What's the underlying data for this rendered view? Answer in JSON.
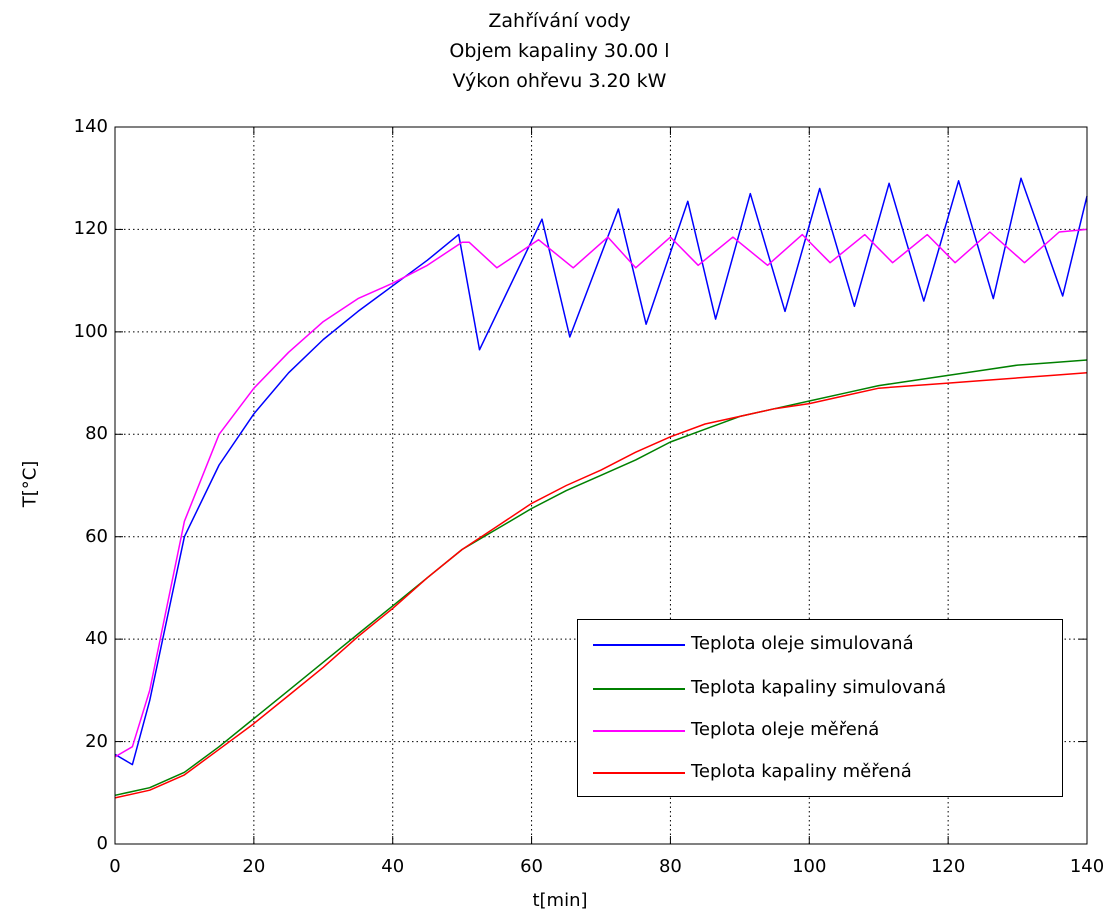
{
  "chart_data": {
    "type": "line",
    "title": [
      "Zahřívání vody",
      "Objem kapaliny 30.00 l",
      "Výkon ohřevu 3.20 kW"
    ],
    "xlabel": "t[min]",
    "ylabel": "T[°C]",
    "xlim": [
      0,
      140
    ],
    "ylim": [
      0,
      140
    ],
    "xticks": [
      0,
      20,
      40,
      60,
      80,
      100,
      120,
      140
    ],
    "yticks": [
      0,
      20,
      40,
      60,
      80,
      100,
      120,
      140
    ],
    "grid": true,
    "legend_position": "bottom-right",
    "series": [
      {
        "name": "Teplota oleje simulovaná",
        "color": "#0000ff",
        "x": [
          0,
          2.5,
          5,
          10,
          15,
          20,
          25,
          30,
          35,
          40,
          45,
          49.5,
          52.5,
          61.5,
          65.5,
          72.5,
          76.5,
          82.5,
          86.5,
          91.5,
          96.5,
          101.5,
          106.5,
          111.5,
          116.5,
          121.5,
          126.5,
          130.5,
          136.5,
          140
        ],
        "y": [
          17.5,
          15.5,
          28,
          60,
          74,
          84,
          92,
          98.5,
          104,
          109,
          114,
          119,
          96.5,
          122,
          99,
          124,
          101.5,
          125.5,
          102.5,
          127,
          104,
          128,
          105,
          129,
          106,
          129.5,
          106.5,
          130,
          107,
          126.5
        ]
      },
      {
        "name": "Teplota kapaliny simulovaná",
        "color": "#008000",
        "x": [
          0,
          5,
          10,
          15,
          20,
          25,
          30,
          35,
          40,
          45,
          50,
          55,
          60,
          65,
          70,
          75,
          80,
          85,
          90,
          95,
          100,
          105,
          110,
          115,
          120,
          125,
          130,
          135,
          140
        ],
        "y": [
          9.5,
          11,
          14,
          19,
          24.5,
          30,
          35.5,
          41,
          46.5,
          52,
          57.5,
          61.5,
          65.5,
          69,
          72,
          75,
          78.5,
          81,
          83.5,
          85,
          86.5,
          88,
          89.5,
          90.5,
          91.5,
          92.5,
          93.5,
          94,
          94.5
        ]
      },
      {
        "name": "Teplota oleje měřená",
        "color": "#ff00ff",
        "x": [
          0,
          2.5,
          5,
          10,
          15,
          20,
          25,
          30,
          35,
          40,
          45,
          50,
          51,
          55,
          61,
          66,
          71,
          75,
          80,
          84,
          89,
          94,
          99,
          103,
          108,
          112,
          117,
          121,
          126,
          131,
          136,
          140
        ],
        "y": [
          17,
          19,
          30,
          63,
          80,
          89,
          96,
          102,
          106.5,
          109.5,
          113,
          117.5,
          117.5,
          112.5,
          118,
          112.5,
          118.5,
          112.5,
          118.5,
          113,
          118.5,
          113,
          119,
          113.5,
          119,
          113.5,
          119,
          113.5,
          119.5,
          113.5,
          119.5,
          120
        ]
      },
      {
        "name": "Teplota kapaliny měřená",
        "color": "#ff0000",
        "x": [
          0,
          5,
          10,
          15,
          20,
          25,
          30,
          35,
          40,
          45,
          50,
          55,
          60,
          65,
          70,
          75,
          80,
          85,
          90,
          95,
          100,
          105,
          110,
          115,
          120,
          125,
          130,
          135,
          140
        ],
        "y": [
          9,
          10.5,
          13.5,
          18.5,
          23.5,
          29,
          34.5,
          40.5,
          46,
          52,
          57.5,
          62,
          66.5,
          70,
          73,
          76.5,
          79.5,
          82,
          83.5,
          85,
          86,
          87.5,
          89,
          89.5,
          90,
          90.5,
          91,
          91.5,
          92
        ]
      }
    ]
  }
}
